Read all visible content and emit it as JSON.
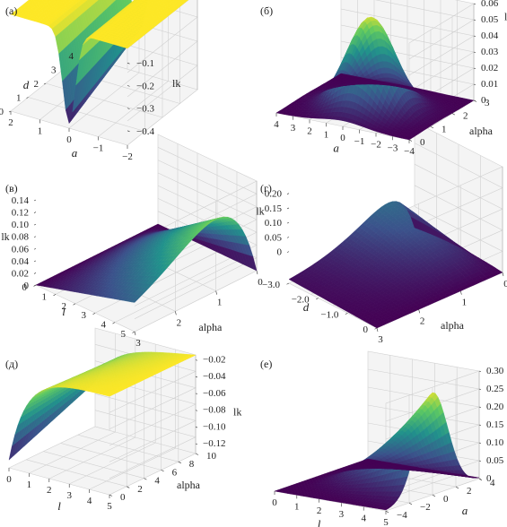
{
  "figure": {
    "panels": [
      {
        "id": "a",
        "label": "(а)"
      },
      {
        "id": "b",
        "label": "(б)"
      },
      {
        "id": "c",
        "label": "(в)"
      },
      {
        "id": "d",
        "label": "(г)"
      },
      {
        "id": "e",
        "label": "(д)"
      },
      {
        "id": "f",
        "label": "(е)"
      }
    ]
  },
  "colors": {
    "colormap": [
      "#440154",
      "#3b528b",
      "#21918c",
      "#5ec962",
      "#fde725"
    ],
    "grid": "#d0d0d0",
    "pane": "#f4f4f4",
    "axis": "#333333"
  },
  "chart_data": [
    {
      "type": "surface3d",
      "panel_label": "(а)",
      "colormap": "viridis",
      "xlabel": "a",
      "ylabel": "d",
      "zlabel": "lk",
      "xlim": [
        -2,
        2
      ],
      "ylim": [
        0,
        4
      ],
      "zlim": [
        -0.5,
        0
      ],
      "xticks": [
        "2",
        "1",
        "0",
        "−1",
        "−2"
      ],
      "yticks": [
        "0",
        "1",
        "2",
        "3",
        "4"
      ],
      "zticks": [
        "−0.1",
        "−0.2",
        "−0.3",
        "−0.4"
      ],
      "description_values": {
        "plateau_lk": 0.0,
        "well_min_lk": -0.45,
        "well_location_a": 0
      }
    },
    {
      "type": "surface3d",
      "panel_label": "(б)",
      "colormap": "viridis",
      "xlabel": "a",
      "ylabel": "alpha",
      "zlabel": "lk",
      "xlim": [
        -4,
        4
      ],
      "ylim": [
        0,
        3
      ],
      "zlim": [
        0,
        0.06
      ],
      "xticks": [
        "4",
        "3",
        "2",
        "1",
        "0",
        "−1",
        "−2",
        "−3",
        "−4"
      ],
      "yticks": [
        "0",
        "1",
        "2",
        "3"
      ],
      "zticks": [
        "0",
        "0.01",
        "0.02",
        "0.03",
        "0.04",
        "0.05",
        "0.06"
      ],
      "description_values": {
        "peak_lk": 0.062,
        "peak_a": 0,
        "peak_alpha": 1.2
      }
    },
    {
      "type": "surface3d",
      "panel_label": "(в)",
      "colormap": "viridis",
      "xlabel": "alpha",
      "ylabel": "l",
      "zlabel": "lk",
      "xlim": [
        0,
        3
      ],
      "ylim": [
        0,
        5
      ],
      "zlim": [
        0,
        0.14
      ],
      "xticks": [
        "3",
        "2",
        "1",
        "0"
      ],
      "yticks": [
        "0",
        "1",
        "2",
        "3",
        "4",
        "5"
      ],
      "zticks": [
        "0",
        "0.02",
        "0.04",
        "0.06",
        "0.08",
        "0.10",
        "0.12",
        "0.14"
      ],
      "description_values": {
        "peak_lk": 0.11,
        "peak_alpha": 1.0,
        "peak_l": 5
      }
    },
    {
      "type": "surface3d",
      "panel_label": "(г)",
      "colormap": "viridis",
      "xlabel": "alpha",
      "ylabel": "d",
      "zlabel": "lk",
      "xlim": [
        0,
        3
      ],
      "ylim": [
        -3.0,
        0
      ],
      "zlim": [
        0,
        0.2
      ],
      "xticks": [
        "3",
        "2",
        "1",
        "0"
      ],
      "yticks": [
        "−3.0",
        "−2.0",
        "−1.0",
        "0"
      ],
      "zticks": [
        "0",
        "0.05",
        "0.10",
        "0.15",
        "0.20"
      ],
      "description_values": {
        "peak_lk": 0.22,
        "peak_alpha": 0.5,
        "peak_d": -3.0
      }
    },
    {
      "type": "surface3d",
      "panel_label": "(д)",
      "colormap": "viridis",
      "xlabel": "l",
      "ylabel": "alpha",
      "zlabel": "lk",
      "xlim": [
        0,
        5
      ],
      "ylim": [
        0,
        10
      ],
      "zlim": [
        -0.13,
        0
      ],
      "xticks": [
        "0",
        "1",
        "2",
        "3",
        "4",
        "5"
      ],
      "yticks": [
        "0",
        "2",
        "4",
        "6",
        "8",
        "10"
      ],
      "zticks": [
        "−0.02",
        "−0.04",
        "−0.06",
        "−0.08",
        "−0.10",
        "−0.12"
      ],
      "description_values": {
        "plateau_lk": 0.0,
        "min_lk": -0.13,
        "min_l": 0
      }
    },
    {
      "type": "surface3d",
      "panel_label": "(е)",
      "colormap": "viridis",
      "xlabel": "l",
      "ylabel": "a",
      "zlabel": "lk",
      "xlim": [
        0,
        5
      ],
      "ylim": [
        -4,
        4
      ],
      "zlim": [
        0,
        0.3
      ],
      "xticks": [
        "0",
        "1",
        "2",
        "3",
        "4",
        "5"
      ],
      "yticks": [
        "−4",
        "−2",
        "0",
        "2",
        "4"
      ],
      "zticks": [
        "0",
        "0.05",
        "0.10",
        "0.15",
        "0.20",
        "0.25",
        "0.30"
      ],
      "description_values": {
        "peak_lk": 0.3,
        "peak_l": 5,
        "peak_a": 0
      }
    }
  ]
}
